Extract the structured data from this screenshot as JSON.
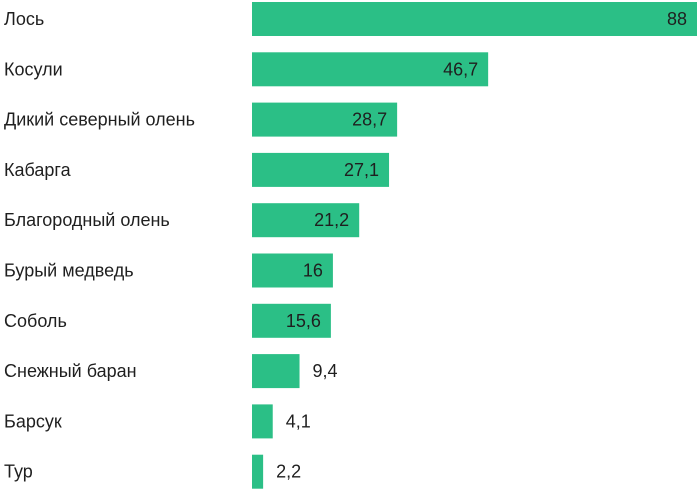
{
  "chart_data": {
    "type": "bar",
    "orientation": "horizontal",
    "categories": [
      "Лось",
      "Косули",
      "Дикий северный олень",
      "Кабарга",
      "Благородный олень",
      "Бурый медведь",
      "Соболь",
      "Снежный баран",
      "Барсук",
      "Тур"
    ],
    "values": [
      88,
      46.7,
      28.7,
      27.1,
      21.2,
      16,
      15.6,
      9.4,
      4.1,
      2.2
    ],
    "value_labels": [
      "88",
      "46,7",
      "28,7",
      "27,1",
      "21,2",
      "16",
      "15,6",
      "9,4",
      "4,1",
      "2,2"
    ],
    "xlim": [
      0,
      88
    ],
    "grid": false,
    "legend": "none",
    "bar_color": "#2bbf86",
    "text_color": "#1f1f1f"
  }
}
